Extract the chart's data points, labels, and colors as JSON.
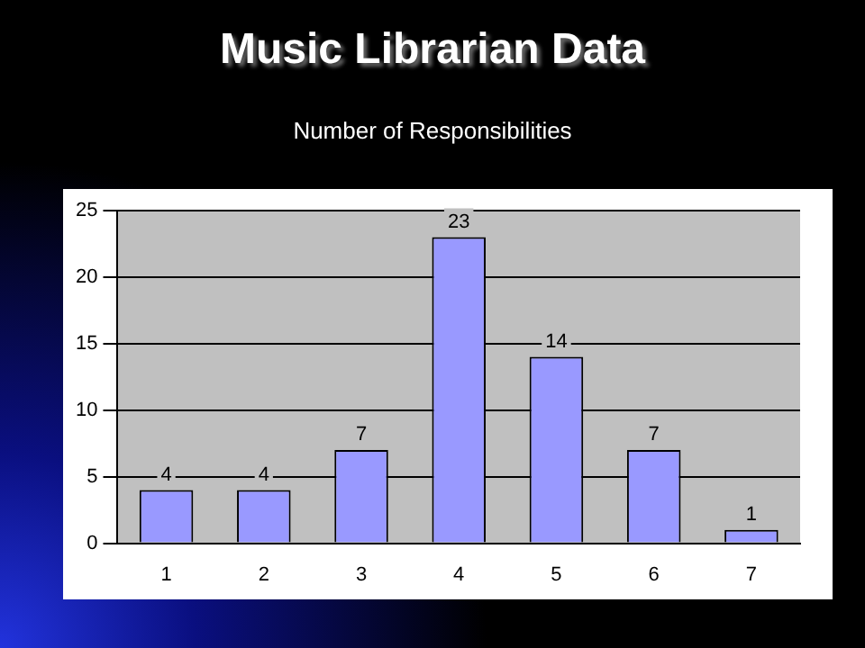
{
  "chart_data": {
    "type": "bar",
    "title": "Music Librarian Data",
    "subtitle": "Number of Responsibilities",
    "categories": [
      "1",
      "2",
      "3",
      "4",
      "5",
      "6",
      "7"
    ],
    "values": [
      4,
      4,
      7,
      23,
      14,
      7,
      1
    ],
    "color": "#9999ff",
    "ylim": [
      0,
      25
    ],
    "yticks": [
      0,
      5,
      10,
      15,
      20,
      25
    ],
    "grid": "y",
    "data_labels": true,
    "legend": false
  }
}
